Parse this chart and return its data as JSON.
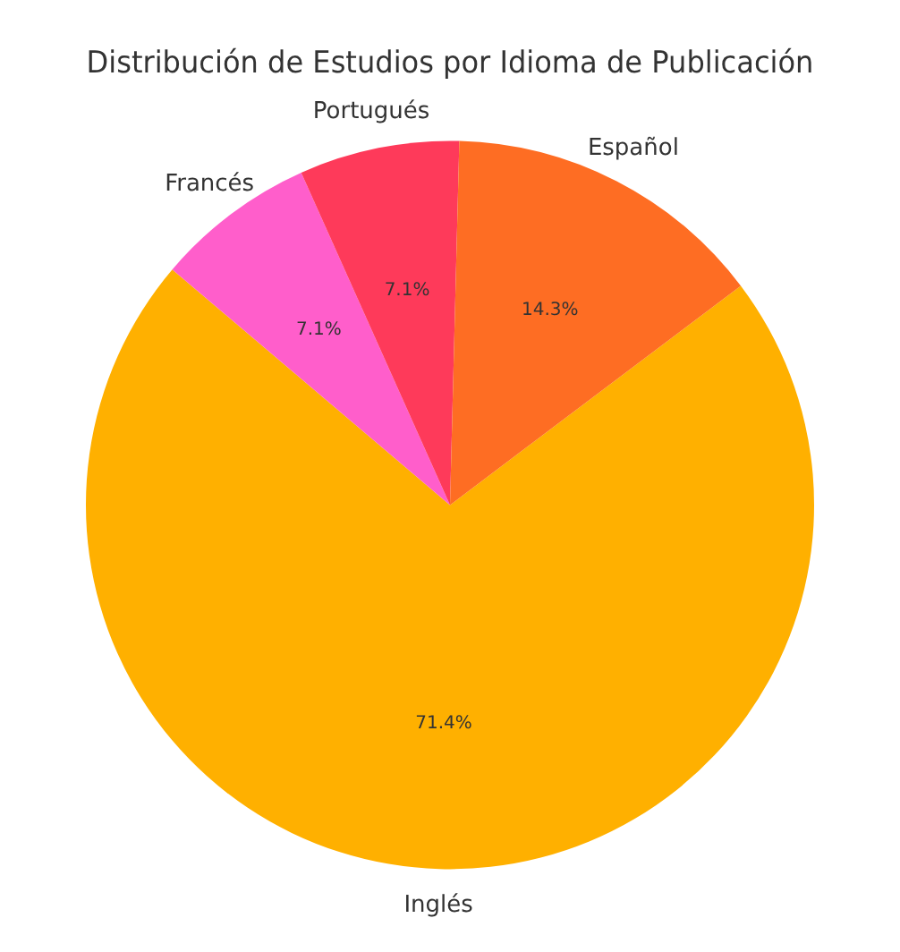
{
  "chart_data": {
    "type": "pie",
    "title": "Distribución de Estudios por Idioma de Publicación",
    "categories": [
      "Inglés",
      "Francés",
      "Portugués",
      "Español"
    ],
    "values": [
      71.4,
      7.1,
      7.1,
      14.3
    ],
    "colors": [
      "#ffb000",
      "#ff5ecb",
      "#fe3a5a",
      "#fe6d23"
    ],
    "value_labels": [
      "71.4%",
      "7.1%",
      "7.1%",
      "14.3%"
    ],
    "legend": false
  }
}
